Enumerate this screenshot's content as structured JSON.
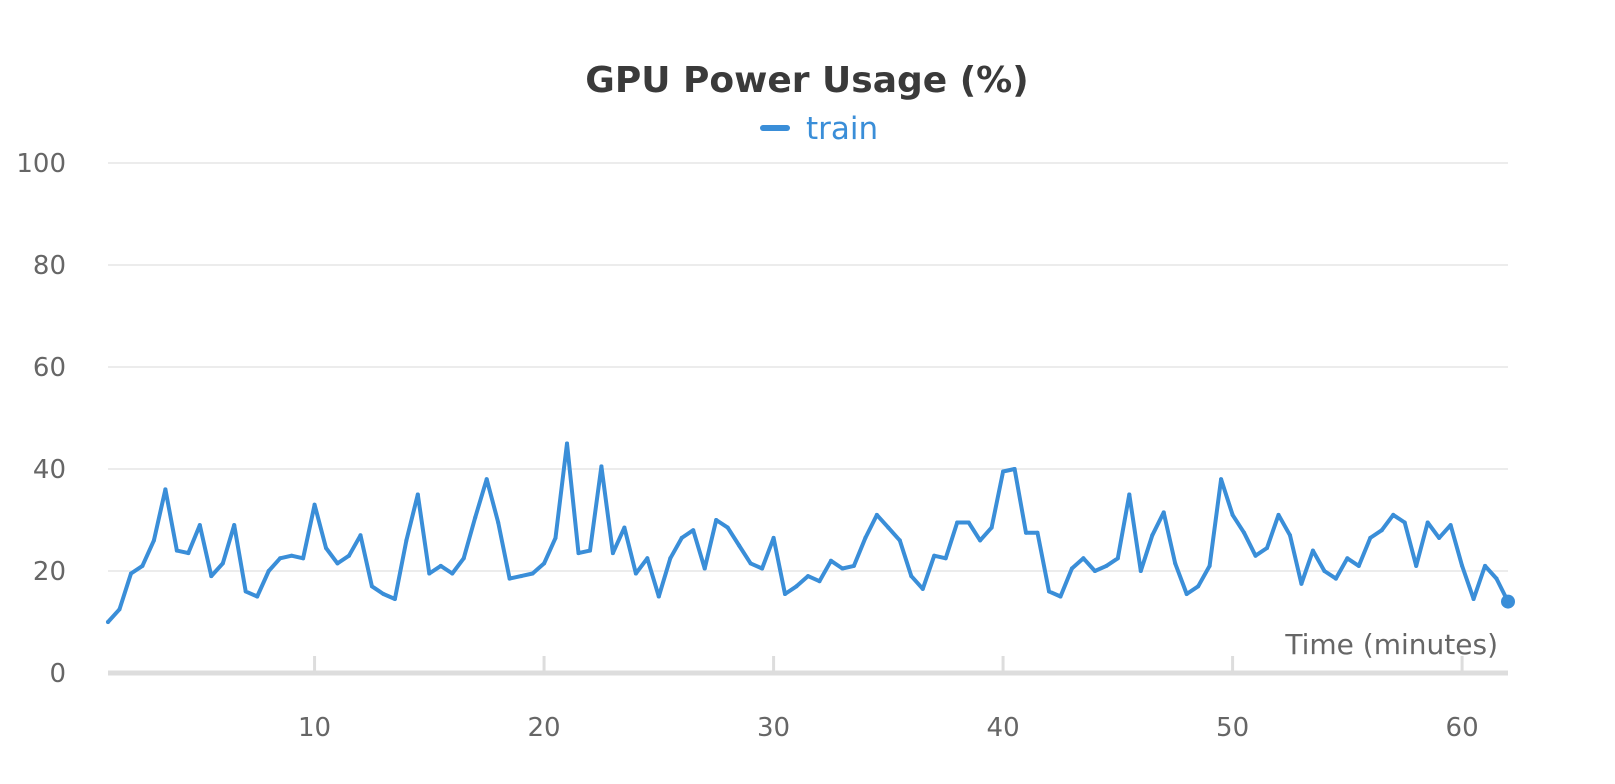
{
  "chart_data": {
    "type": "line",
    "title": "GPU Power Usage (%)",
    "xlabel": "Time (minutes)",
    "ylabel": "",
    "xlim": [
      1,
      62
    ],
    "ylim": [
      0,
      100
    ],
    "x_ticks": [
      10,
      20,
      30,
      40,
      50,
      60
    ],
    "y_ticks": [
      0,
      20,
      40,
      60,
      80,
      100
    ],
    "grid": "horizontal",
    "legend": "top-center",
    "colors": {
      "series": "#3a8ed8",
      "grid": "#e6e6e6",
      "axis": "#dddddd",
      "tick_text": "#666666",
      "title": "#3a3a3a"
    },
    "series": [
      {
        "name": "train",
        "x": [
          1,
          1.5,
          2,
          2.5,
          3,
          3.5,
          4,
          4.5,
          5,
          5.5,
          6,
          6.5,
          7,
          7.5,
          8,
          8.5,
          9,
          9.5,
          10,
          10.5,
          11,
          11.5,
          12,
          12.5,
          13,
          13.5,
          14,
          14.5,
          15,
          15.5,
          16,
          16.5,
          17,
          17.5,
          18,
          18.5,
          19,
          19.5,
          20,
          20.5,
          21,
          21.5,
          22,
          22.5,
          23,
          23.5,
          24,
          24.5,
          25,
          25.5,
          26,
          26.5,
          27,
          27.5,
          28,
          28.5,
          29,
          29.5,
          30,
          30.5,
          31,
          31.5,
          32,
          32.5,
          33,
          33.5,
          34,
          34.5,
          35,
          35.5,
          36,
          36.5,
          37,
          37.5,
          38,
          38.5,
          39,
          39.5,
          40,
          40.5,
          41,
          41.5,
          42,
          42.5,
          43,
          43.5,
          44,
          44.5,
          45,
          45.5,
          46,
          46.5,
          47,
          47.5,
          48,
          48.5,
          49,
          49.5,
          50,
          50.5,
          51,
          51.5,
          52,
          52.5,
          53,
          53.5,
          54,
          54.5,
          55,
          55.5,
          56,
          56.5,
          57,
          57.5,
          58,
          58.5,
          59,
          59.5,
          60,
          60.5,
          61,
          61.5,
          62
        ],
        "values": [
          10,
          12.5,
          19.5,
          21,
          26,
          36,
          24,
          23.5,
          29,
          19,
          21.5,
          29,
          16,
          15,
          20,
          22.5,
          23,
          22.5,
          33,
          24.5,
          21.5,
          23,
          27,
          17,
          15.5,
          14.5,
          26,
          35,
          19.5,
          21,
          19.5,
          22.5,
          30.5,
          38,
          29.5,
          18.5,
          19,
          19.5,
          21.5,
          26.5,
          45,
          23.5,
          24,
          40.5,
          23.5,
          28.5,
          19.5,
          22.5,
          15,
          22.5,
          26.5,
          28,
          20.5,
          30,
          28.5,
          25,
          21.5,
          20.5,
          26.5,
          15.5,
          17,
          19,
          18,
          22,
          20.5,
          21,
          26.5,
          31,
          28.5,
          26,
          19,
          16.5,
          23,
          22.5,
          29.5,
          29.5,
          26,
          28.5,
          39.5,
          40,
          27.5,
          27.5,
          16,
          15,
          20.5,
          22.5,
          20,
          21,
          22.5,
          35,
          20,
          27,
          31.5,
          21.5,
          15.5,
          17,
          21,
          38,
          31,
          27.5,
          23,
          24.5,
          31,
          27,
          17.5,
          24,
          20,
          18.5,
          22.5,
          21,
          26.5,
          28,
          31,
          29.5,
          21,
          29.5,
          26.5,
          29,
          21,
          14.5,
          21,
          18.5,
          14
        ]
      }
    ]
  }
}
